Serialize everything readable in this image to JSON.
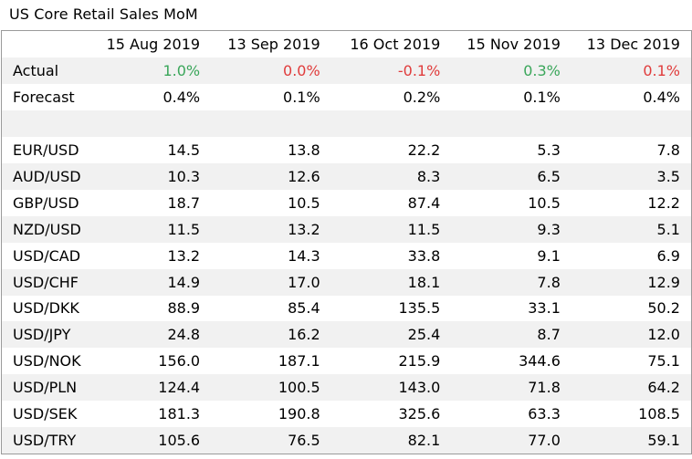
{
  "title": "US Core Retail Sales MoM",
  "colors": {
    "positive": "#3aa65a",
    "negative": "#e03c3c",
    "row_shade": "#f1f1f1"
  },
  "chart_data": {
    "type": "table",
    "title": "US Core Retail Sales MoM",
    "columns": [
      "15 Aug 2019",
      "13 Sep 2019",
      "16 Oct 2019",
      "15 Nov 2019",
      "13 Dec 2019"
    ],
    "actual": {
      "label": "Actual",
      "values": [
        "1.0%",
        "0.0%",
        "-0.1%",
        "0.3%",
        "0.1%"
      ],
      "tone": [
        "positive",
        "negative",
        "negative",
        "positive",
        "negative"
      ]
    },
    "forecast": {
      "label": "Forecast",
      "values": [
        "0.4%",
        "0.1%",
        "0.2%",
        "0.1%",
        "0.4%"
      ]
    },
    "rows": [
      {
        "label": "EUR/USD",
        "values": [
          "14.5",
          "13.8",
          "22.2",
          "5.3",
          "7.8"
        ]
      },
      {
        "label": "AUD/USD",
        "values": [
          "10.3",
          "12.6",
          "8.3",
          "6.5",
          "3.5"
        ]
      },
      {
        "label": "GBP/USD",
        "values": [
          "18.7",
          "10.5",
          "87.4",
          "10.5",
          "12.2"
        ]
      },
      {
        "label": "NZD/USD",
        "values": [
          "11.5",
          "13.2",
          "11.5",
          "9.3",
          "5.1"
        ]
      },
      {
        "label": "USD/CAD",
        "values": [
          "13.2",
          "14.3",
          "33.8",
          "9.1",
          "6.9"
        ]
      },
      {
        "label": "USD/CHF",
        "values": [
          "14.9",
          "17.0",
          "18.1",
          "7.8",
          "12.9"
        ]
      },
      {
        "label": "USD/DKK",
        "values": [
          "88.9",
          "85.4",
          "135.5",
          "33.1",
          "50.2"
        ]
      },
      {
        "label": "USD/JPY",
        "values": [
          "24.8",
          "16.2",
          "25.4",
          "8.7",
          "12.0"
        ]
      },
      {
        "label": "USD/NOK",
        "values": [
          "156.0",
          "187.1",
          "215.9",
          "344.6",
          "75.1"
        ]
      },
      {
        "label": "USD/PLN",
        "values": [
          "124.4",
          "100.5",
          "143.0",
          "71.8",
          "64.2"
        ]
      },
      {
        "label": "USD/SEK",
        "values": [
          "181.3",
          "190.8",
          "325.6",
          "63.3",
          "108.5"
        ]
      },
      {
        "label": "USD/TRY",
        "values": [
          "105.6",
          "76.5",
          "82.1",
          "77.0",
          "59.1"
        ]
      }
    ]
  }
}
